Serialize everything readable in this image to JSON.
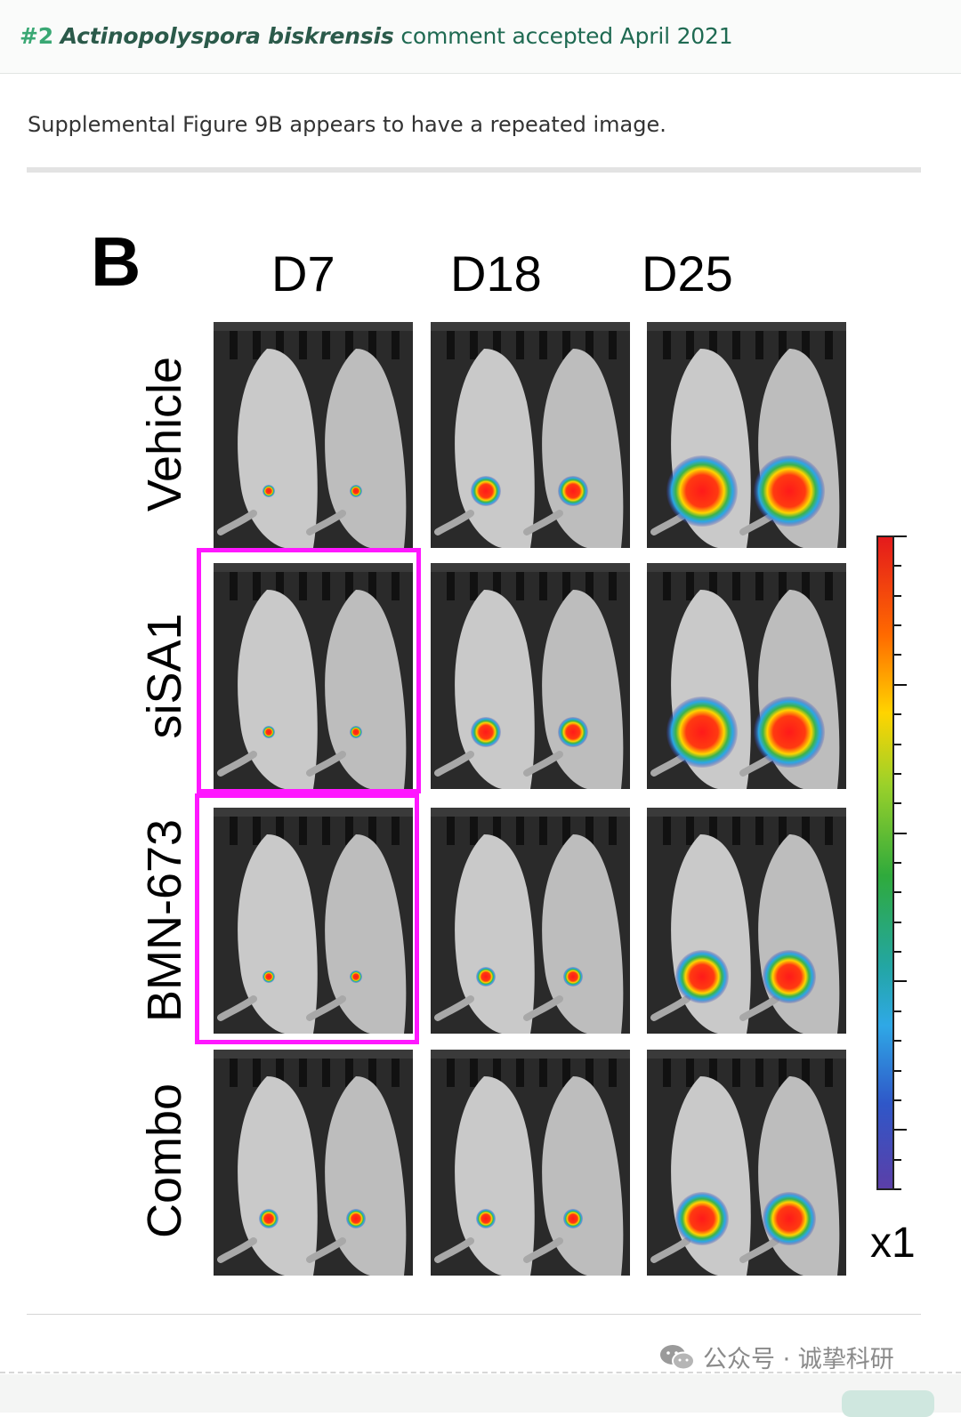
{
  "comment": {
    "number": "#2",
    "author": "Actinopolyspora biskrensis",
    "status_text": "comment accepted April 2021",
    "body": "Supplemental Figure 9B appears to have a repeated image."
  },
  "figure": {
    "panel_letter": "B",
    "columns": [
      "D7",
      "D18",
      "D25"
    ],
    "rows": [
      "Vehicle",
      "siSA1",
      "BMN-673",
      "Combo"
    ],
    "intensity": [
      [
        1,
        3,
        5
      ],
      [
        1,
        3,
        5
      ],
      [
        1,
        2,
        4
      ],
      [
        2,
        2,
        4
      ]
    ],
    "highlight_color": "#ff17ff",
    "highlighted_tiles": [
      "siSA1/D7",
      "BMN-673/D7"
    ],
    "colorbar_label": "x1",
    "colorbar_colors": [
      "#e41a1c",
      "#ffd400",
      "#2faa3c",
      "#2fa8e6",
      "#5b3fa8"
    ]
  },
  "watermark": {
    "icon": "wechat-icon",
    "text": "公众号 · 诚挚科研"
  }
}
